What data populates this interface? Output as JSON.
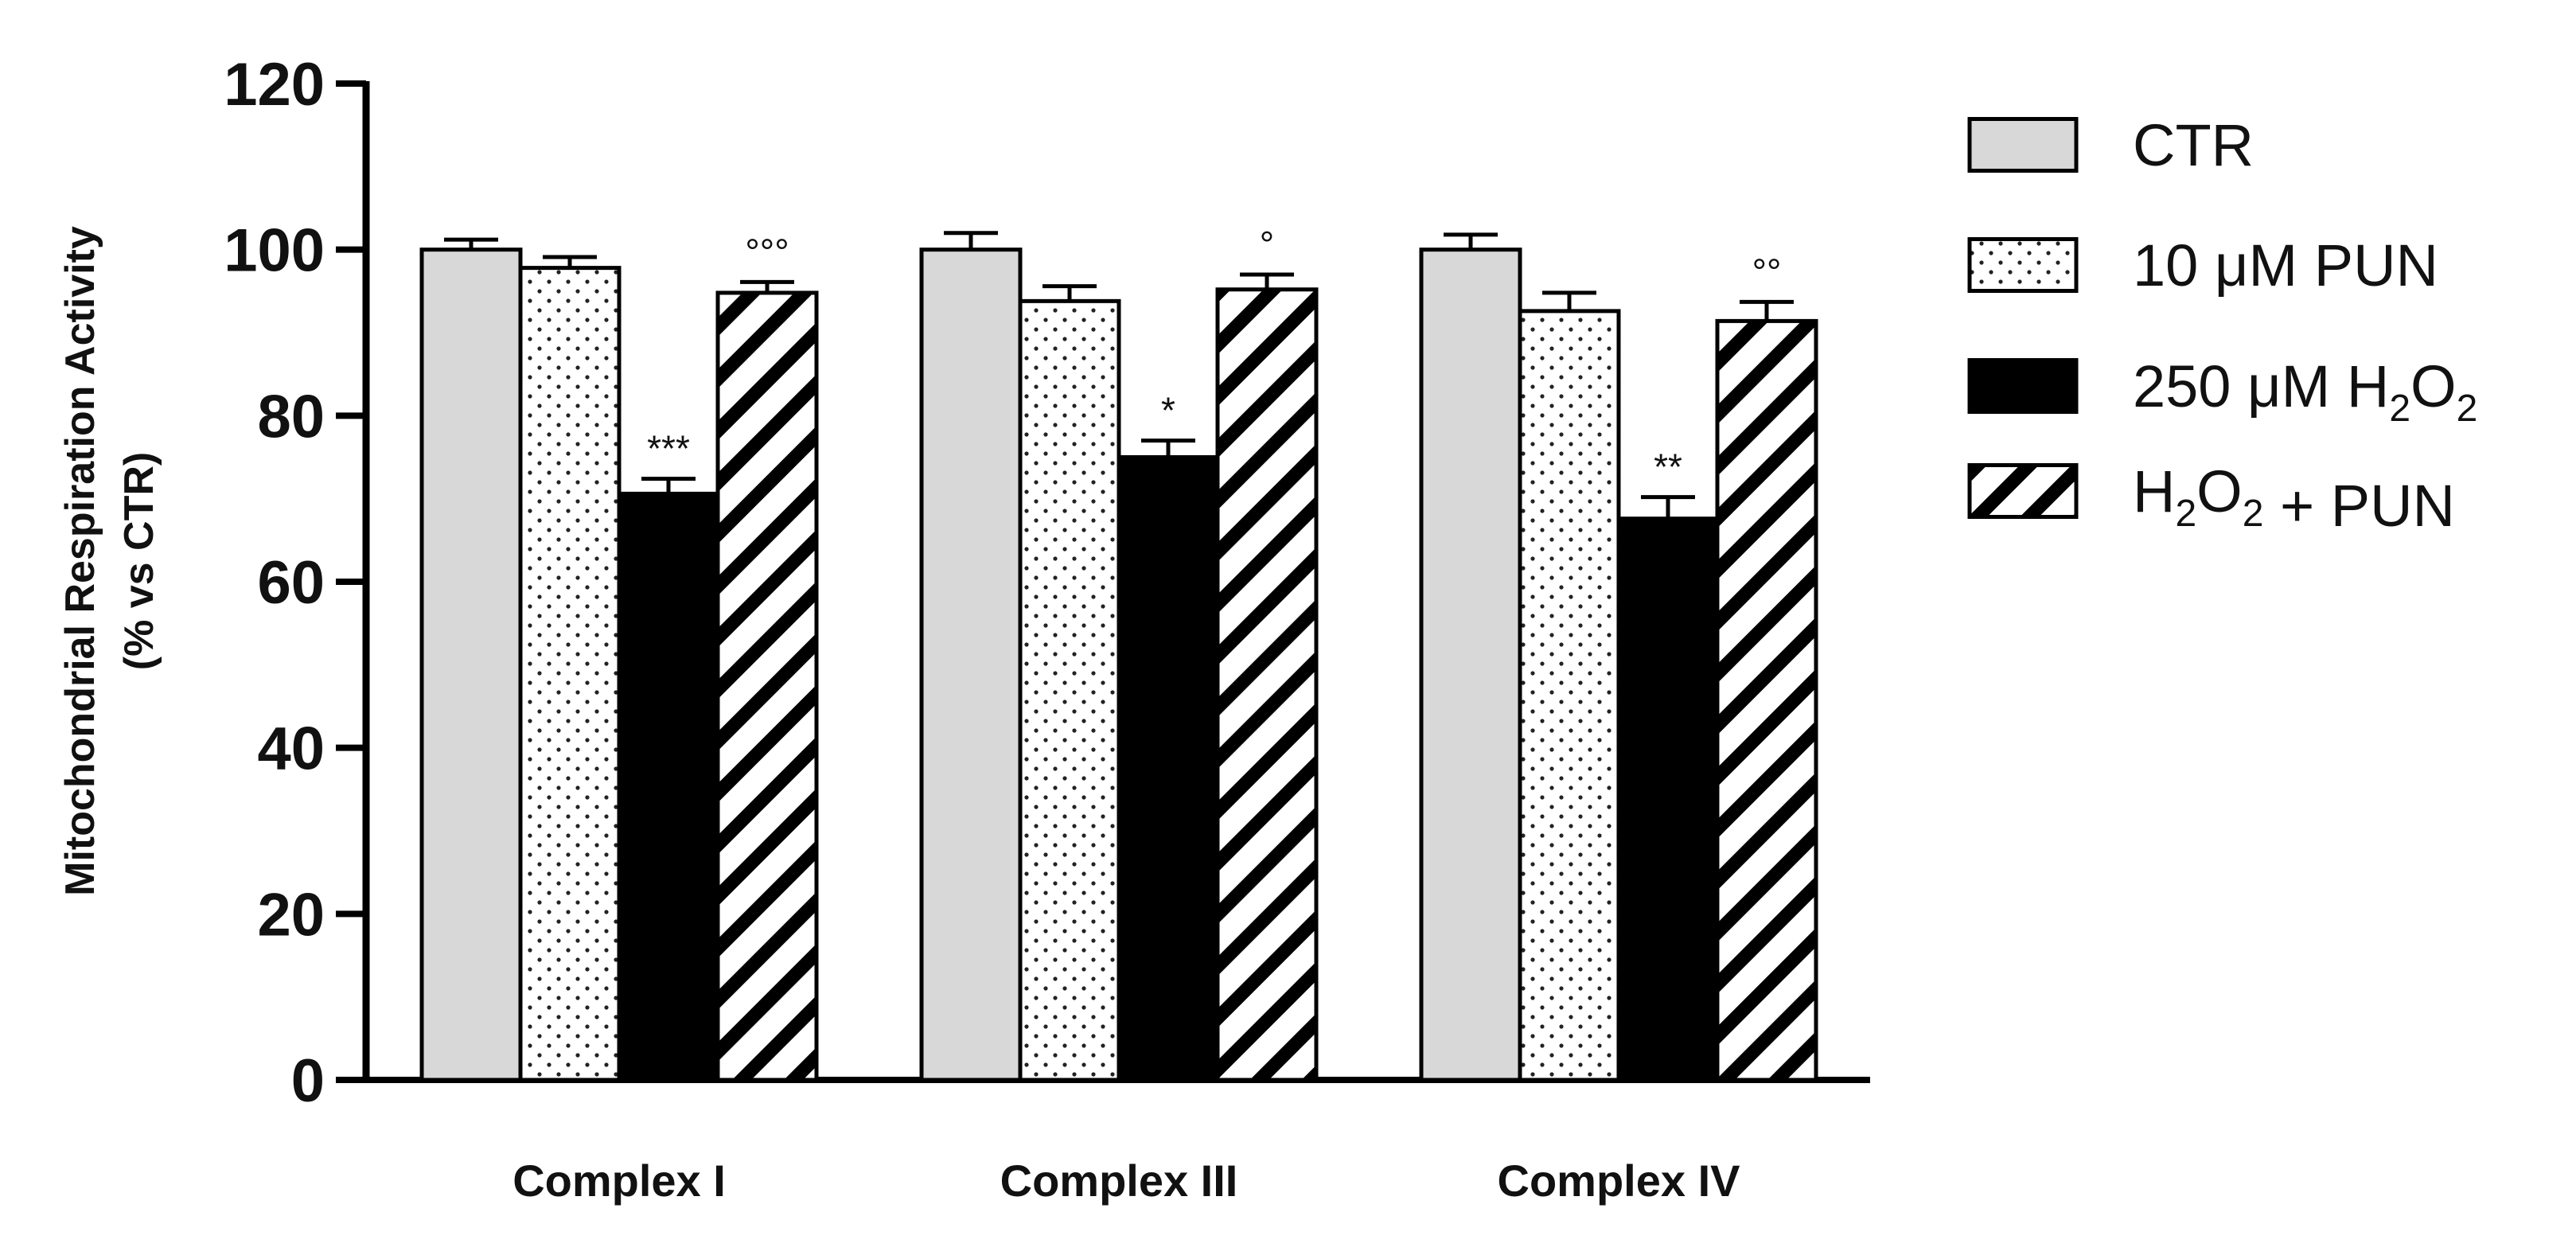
{
  "chart_data": {
    "type": "bar",
    "title": "",
    "xlabel": "",
    "ylabel": "Mitochondrial Respiration Activity",
    "ylabel_line2": "(% vs CTR)",
    "ylim": [
      0,
      120
    ],
    "yticks": [
      "0",
      "20",
      "40",
      "60",
      "80",
      "100",
      "120"
    ],
    "categories": [
      "Complex I",
      "Complex III",
      "Complex IV"
    ],
    "series": [
      {
        "name": "CTR",
        "legend_label": "CTR",
        "pattern": "solid-gray",
        "values": [
          100,
          100,
          100
        ],
        "errors": [
          1.2,
          2.0,
          1.8
        ],
        "annotations": [
          "",
          "",
          ""
        ]
      },
      {
        "name": "10 μM PUN",
        "legend_label": "10 μM PUN",
        "pattern": "dots",
        "values": [
          97.8,
          93.8,
          92.6
        ],
        "errors": [
          1.3,
          1.8,
          2.2
        ],
        "annotations": [
          "",
          "",
          ""
        ]
      },
      {
        "name": "250 μM H2O2",
        "legend_label": "250 μM H2O2",
        "pattern": "solid-black",
        "values": [
          70.6,
          75.0,
          67.6
        ],
        "errors": [
          1.8,
          2.0,
          2.6
        ],
        "annotations": [
          "***",
          "*",
          "**"
        ]
      },
      {
        "name": "H2O2 + PUN",
        "legend_label": "H2O2 + PUN",
        "pattern": "hatch",
        "values": [
          94.8,
          95.2,
          91.4
        ],
        "errors": [
          1.3,
          1.8,
          2.3
        ],
        "annotations": [
          "°°°",
          "°",
          "°°"
        ]
      }
    ],
    "grid": false,
    "legend_position": "right"
  }
}
